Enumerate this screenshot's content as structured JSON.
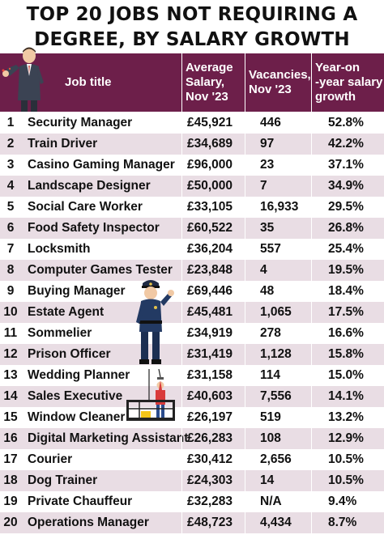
{
  "title": {
    "line1": "TOP 20 JOBS NOT REQUIRING A",
    "line2": "DEGREE, BY SALARY GROWTH"
  },
  "header": {
    "job": "Job title",
    "salary": [
      "Average",
      "Salary,",
      "Nov '23"
    ],
    "vacancies": [
      "Vacancies,",
      "Nov '23"
    ],
    "growth": [
      "Year-on",
      "-year salary",
      "growth"
    ]
  },
  "icons": {
    "businessman": "businessman-icon",
    "police_officer": "police-officer-icon",
    "window_cleaner": "window-cleaner-icon"
  },
  "colors": {
    "header_bg": "#6d1f4a",
    "row_alt": "#e9dde4",
    "row_plain": "#ffffff"
  },
  "chart_data": {
    "type": "table",
    "columns": [
      "",
      "Job title",
      "Average Salary, Nov '23",
      "Vacancies, Nov '23",
      "Year-on-year salary growth"
    ],
    "rows": [
      {
        "rank": "1",
        "job": "Security Manager",
        "salary": "£45,921",
        "vacancies": "446",
        "growth": "52.8%"
      },
      {
        "rank": "2",
        "job": "Train Driver",
        "salary": "£34,689",
        "vacancies": "97",
        "growth": "42.2%"
      },
      {
        "rank": "3",
        "job": "Casino Gaming Manager",
        "salary": "£96,000",
        "vacancies": "23",
        "growth": "37.1%"
      },
      {
        "rank": "4",
        "job": "Landscape Designer",
        "salary": "£50,000",
        "vacancies": "7",
        "growth": "34.9%"
      },
      {
        "rank": "5",
        "job": "Social Care Worker",
        "salary": "£33,105",
        "vacancies": "16,933",
        "growth": "29.5%"
      },
      {
        "rank": "6",
        "job": "Food Safety Inspector",
        "salary": "£60,522",
        "vacancies": "35",
        "growth": "26.8%"
      },
      {
        "rank": "7",
        "job": "Locksmith",
        "salary": "£36,204",
        "vacancies": "557",
        "growth": "25.4%"
      },
      {
        "rank": "8",
        "job": "Computer Games Tester",
        "salary": "£23,848",
        "vacancies": "4",
        "growth": "19.5%"
      },
      {
        "rank": "9",
        "job": "Buying Manager",
        "salary": "£69,446",
        "vacancies": "48",
        "growth": "18.4%"
      },
      {
        "rank": "10",
        "job": "Estate Agent",
        "salary": "£45,481",
        "vacancies": "1,065",
        "growth": "17.5%"
      },
      {
        "rank": "11",
        "job": "Sommelier",
        "salary": "£34,919",
        "vacancies": "278",
        "growth": "16.6%"
      },
      {
        "rank": "12",
        "job": "Prison Officer",
        "salary": "£31,419",
        "vacancies": "1,128",
        "growth": "15.8%"
      },
      {
        "rank": "13",
        "job": "Wedding Planner",
        "salary": "£31,158",
        "vacancies": "114",
        "growth": "15.0%"
      },
      {
        "rank": "14",
        "job": "Sales Executive",
        "salary": "£40,603",
        "vacancies": "7,556",
        "growth": "14.1%"
      },
      {
        "rank": "15",
        "job": "Window Cleaner",
        "salary": "£26,197",
        "vacancies": "519",
        "growth": "13.2%"
      },
      {
        "rank": "16",
        "job": "Digital Marketing Assistant",
        "salary": "£26,283",
        "vacancies": "108",
        "growth": "12.9%"
      },
      {
        "rank": "17",
        "job": "Courier",
        "salary": "£30,412",
        "vacancies": "2,656",
        "growth": "10.5%"
      },
      {
        "rank": "18",
        "job": "Dog Trainer",
        "salary": "£24,303",
        "vacancies": "14",
        "growth": "10.5%"
      },
      {
        "rank": "19",
        "job": "Private Chauffeur",
        "salary": "£32,283",
        "vacancies": "N/A",
        "growth": "9.4%"
      },
      {
        "rank": "20",
        "job": "Operations Manager",
        "salary": "£48,723",
        "vacancies": "4,434",
        "growth": "8.7%"
      }
    ]
  }
}
